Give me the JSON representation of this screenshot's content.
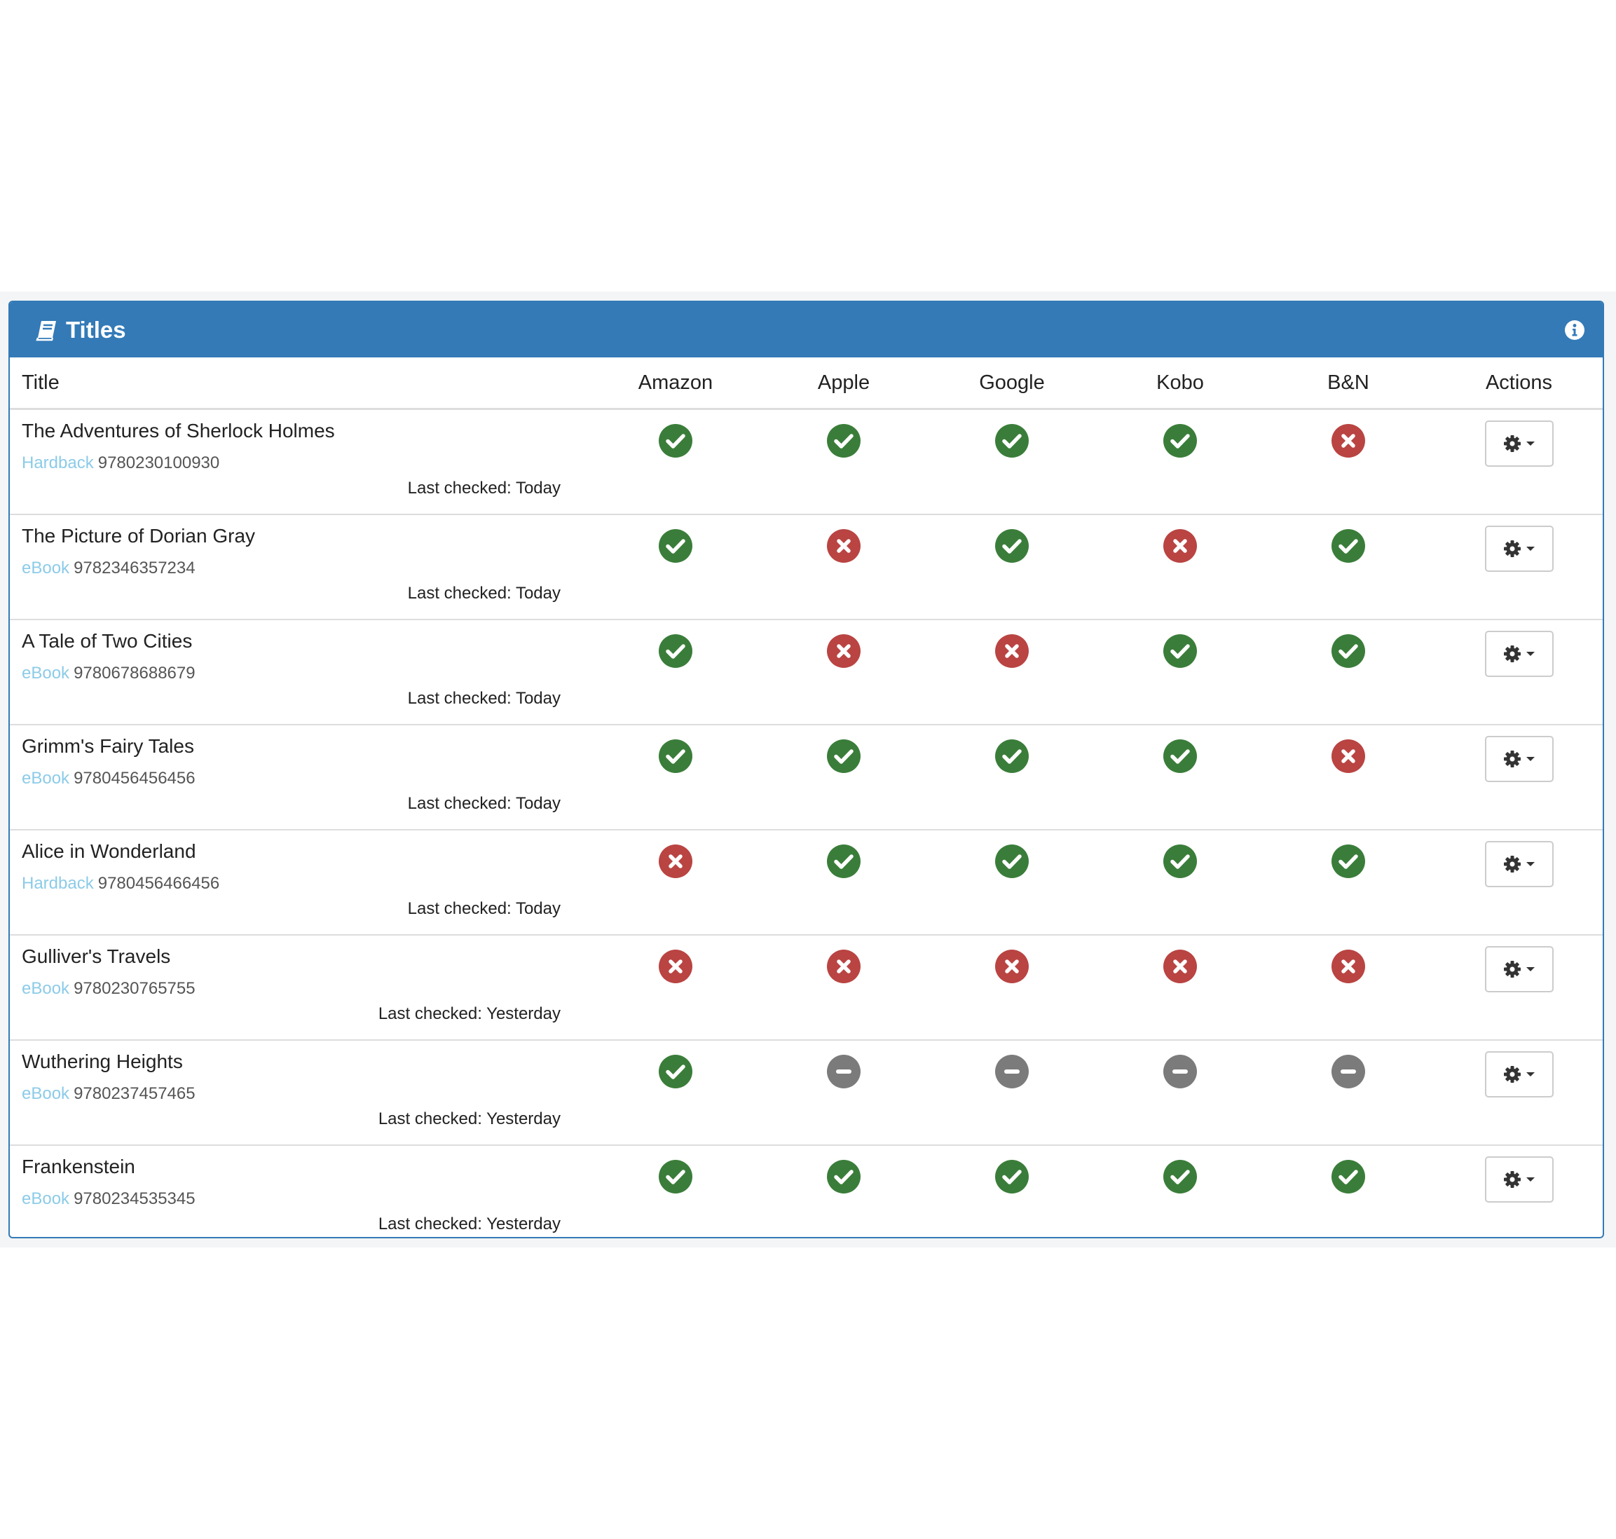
{
  "panel": {
    "title": "Titles",
    "header_color": "#337ab7",
    "icons": {
      "heading": "book-icon",
      "info": "info-circle-icon"
    }
  },
  "columns": {
    "title": "Title",
    "stores": [
      "Amazon",
      "Apple",
      "Google",
      "Kobo",
      "B&N"
    ],
    "actions": "Actions"
  },
  "status_colors": {
    "available": "#3a7d3a",
    "unavailable": "#b94442",
    "na": "#7b7b7b"
  },
  "rows": [
    {
      "title": "The Adventures of Sherlock Holmes",
      "format": "Hardback",
      "isbn": "9780230100930",
      "last_checked": "Last checked: Today",
      "status": [
        "available",
        "available",
        "available",
        "available",
        "unavailable"
      ]
    },
    {
      "title": "The Picture of Dorian Gray",
      "format": "eBook",
      "isbn": "9782346357234",
      "last_checked": "Last checked: Today",
      "status": [
        "available",
        "unavailable",
        "available",
        "unavailable",
        "available"
      ]
    },
    {
      "title": "A Tale of Two Cities",
      "format": "eBook",
      "isbn": "9780678688679",
      "last_checked": "Last checked: Today",
      "status": [
        "available",
        "unavailable",
        "unavailable",
        "available",
        "available"
      ]
    },
    {
      "title": "Grimm's Fairy Tales",
      "format": "eBook",
      "isbn": "9780456456456",
      "last_checked": "Last checked: Today",
      "status": [
        "available",
        "available",
        "available",
        "available",
        "unavailable"
      ]
    },
    {
      "title": "Alice in Wonderland",
      "format": "Hardback",
      "isbn": "9780456466456",
      "last_checked": "Last checked: Today",
      "status": [
        "unavailable",
        "available",
        "available",
        "available",
        "available"
      ]
    },
    {
      "title": "Gulliver's Travels",
      "format": "eBook",
      "isbn": "9780230765755",
      "last_checked": "Last checked: Yesterday",
      "status": [
        "unavailable",
        "unavailable",
        "unavailable",
        "unavailable",
        "unavailable"
      ]
    },
    {
      "title": "Wuthering Heights",
      "format": "eBook",
      "isbn": "9780237457465",
      "last_checked": "Last checked: Yesterday",
      "status": [
        "available",
        "na",
        "na",
        "na",
        "na"
      ]
    },
    {
      "title": "Frankenstein",
      "format": "eBook",
      "isbn": "9780234535345",
      "last_checked": "Last checked: Yesterday",
      "status": [
        "available",
        "available",
        "available",
        "available",
        "available"
      ]
    }
  ]
}
